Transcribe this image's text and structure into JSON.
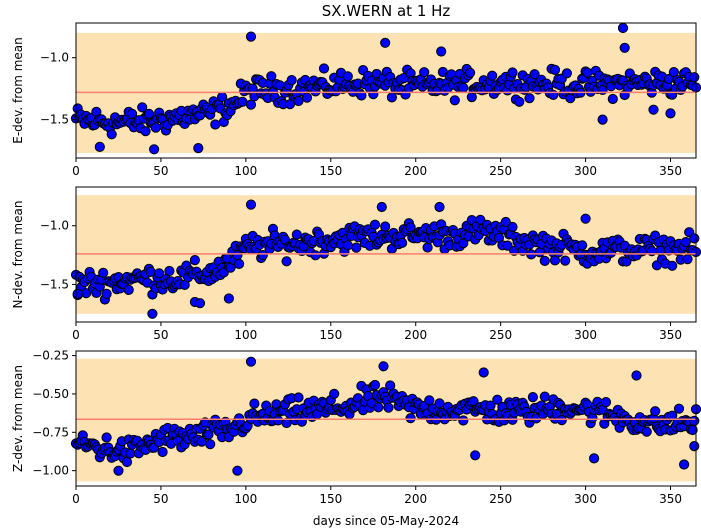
{
  "figure": {
    "title": "SX.WERN at 1 Hz",
    "xlabel": "days since 05-May-2024"
  },
  "colors": {
    "band": "#fde3b3",
    "mean_line": "#fa7f6f",
    "marker_fill": "#0000ff",
    "marker_edge": "#000000"
  },
  "chart_data": [
    {
      "type": "scatter",
      "ylabel": "E-dev. from mean",
      "xlim": [
        0,
        365
      ],
      "ylim": [
        -1.81,
        -0.72
      ],
      "xticks": [
        0,
        50,
        100,
        150,
        200,
        250,
        300,
        350
      ],
      "yticks": [
        -1.5,
        -1.0
      ],
      "ytick_labels": [
        "−1.5",
        "−1.0"
      ],
      "band": [
        -1.77,
        -0.8
      ],
      "mean": -1.28,
      "anchors": [
        [
          0,
          -1.5
        ],
        [
          20,
          -1.52
        ],
        [
          40,
          -1.52
        ],
        [
          60,
          -1.48
        ],
        [
          80,
          -1.45
        ],
        [
          92,
          -1.38
        ],
        [
          102,
          -1.27
        ],
        [
          130,
          -1.25
        ],
        [
          170,
          -1.2
        ],
        [
          200,
          -1.23
        ],
        [
          250,
          -1.2
        ],
        [
          300,
          -1.22
        ],
        [
          340,
          -1.2
        ],
        [
          365,
          -1.2
        ]
      ],
      "outliers": [
        [
          103,
          -0.83
        ],
        [
          182,
          -0.88
        ],
        [
          322,
          -0.76
        ],
        [
          323,
          -0.92
        ],
        [
          215,
          -0.95
        ],
        [
          46,
          -1.74
        ],
        [
          14,
          -1.72
        ],
        [
          72,
          -1.73
        ],
        [
          310,
          -1.5
        ],
        [
          350,
          -1.45
        ],
        [
          340,
          -1.42
        ]
      ]
    },
    {
      "type": "scatter",
      "ylabel": "N-dev. from mean",
      "xlim": [
        0,
        365
      ],
      "ylim": [
        -1.82,
        -0.67
      ],
      "xticks": [
        0,
        50,
        100,
        150,
        200,
        250,
        300,
        350
      ],
      "yticks": [
        -1.5,
        -1.0
      ],
      "ytick_labels": [
        "−1.5",
        "−1.0"
      ],
      "band": [
        -1.75,
        -0.74
      ],
      "mean": -1.24,
      "anchors": [
        [
          0,
          -1.5
        ],
        [
          20,
          -1.48
        ],
        [
          40,
          -1.45
        ],
        [
          60,
          -1.45
        ],
        [
          80,
          -1.4
        ],
        [
          92,
          -1.3
        ],
        [
          102,
          -1.18
        ],
        [
          130,
          -1.15
        ],
        [
          160,
          -1.1
        ],
        [
          190,
          -1.08
        ],
        [
          220,
          -1.08
        ],
        [
          240,
          -1.05
        ],
        [
          270,
          -1.15
        ],
        [
          300,
          -1.22
        ],
        [
          340,
          -1.2
        ],
        [
          365,
          -1.2
        ]
      ],
      "outliers": [
        [
          103,
          -0.82
        ],
        [
          180,
          -0.84
        ],
        [
          214,
          -0.84
        ],
        [
          45,
          -1.75
        ],
        [
          70,
          -1.65
        ],
        [
          73,
          -1.66
        ],
        [
          90,
          -1.62
        ],
        [
          300,
          -0.94
        ],
        [
          1,
          -1.58
        ]
      ]
    },
    {
      "type": "scatter",
      "ylabel": "Z-dev. from mean",
      "xlim": [
        0,
        365
      ],
      "ylim": [
        -1.1,
        -0.22
      ],
      "xticks": [
        0,
        50,
        100,
        150,
        200,
        250,
        300,
        350
      ],
      "yticks": [
        -1.0,
        -0.75,
        -0.5,
        -0.25
      ],
      "ytick_labels": [
        "−1.00",
        "−0.75",
        "−0.50",
        "−0.25"
      ],
      "band": [
        -1.07,
        -0.27
      ],
      "mean": -0.665,
      "anchors": [
        [
          0,
          -0.82
        ],
        [
          30,
          -0.88
        ],
        [
          50,
          -0.8
        ],
        [
          70,
          -0.78
        ],
        [
          90,
          -0.74
        ],
        [
          102,
          -0.66
        ],
        [
          130,
          -0.62
        ],
        [
          160,
          -0.58
        ],
        [
          180,
          -0.52
        ],
        [
          200,
          -0.6
        ],
        [
          230,
          -0.6
        ],
        [
          260,
          -0.62
        ],
        [
          290,
          -0.58
        ],
        [
          320,
          -0.65
        ],
        [
          340,
          -0.7
        ],
        [
          365,
          -0.68
        ]
      ],
      "outliers": [
        [
          103,
          -0.29
        ],
        [
          181,
          -0.32
        ],
        [
          240,
          -0.36
        ],
        [
          305,
          -0.92
        ],
        [
          358,
          -0.96
        ],
        [
          364,
          -0.84
        ],
        [
          95,
          -1.0
        ],
        [
          25,
          -1.0
        ],
        [
          235,
          -0.9
        ],
        [
          330,
          -0.38
        ]
      ]
    }
  ]
}
